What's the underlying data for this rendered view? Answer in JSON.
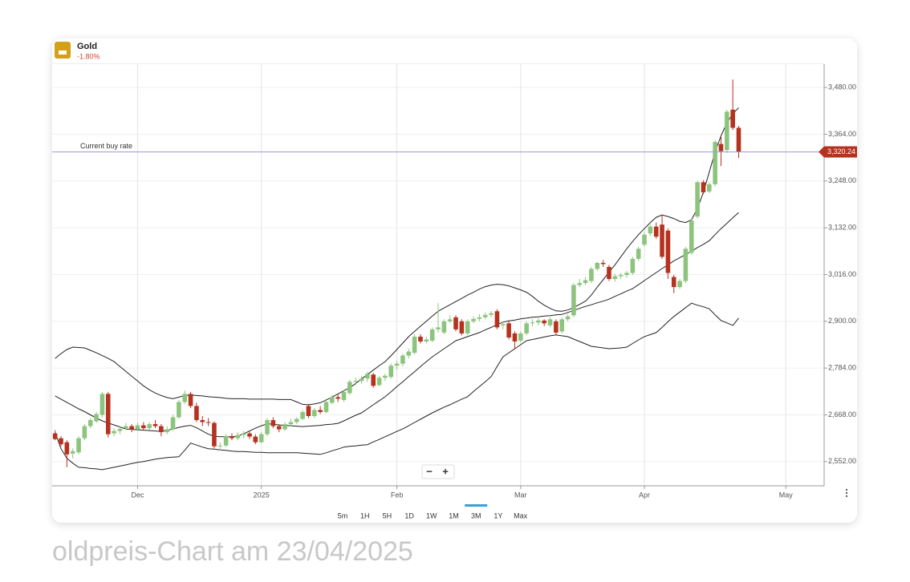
{
  "header": {
    "title": "Gold",
    "change": "-1.80%"
  },
  "chart_data": {
    "type": "candlestick",
    "categories": [
      null,
      null,
      null,
      null,
      null,
      null,
      null,
      null,
      null,
      null,
      null,
      null,
      null,
      null,
      "Dec",
      null,
      null,
      null,
      null,
      null,
      null,
      null,
      null,
      null,
      null,
      null,
      null,
      null,
      null,
      null,
      null,
      null,
      null,
      null,
      null,
      "2025",
      null,
      null,
      null,
      null,
      null,
      null,
      null,
      null,
      null,
      null,
      null,
      null,
      null,
      null,
      null,
      null,
      null,
      null,
      null,
      null,
      null,
      null,
      "Feb",
      null,
      null,
      null,
      null,
      null,
      null,
      null,
      null,
      null,
      null,
      null,
      null,
      null,
      null,
      null,
      null,
      null,
      null,
      null,
      null,
      "Mar",
      null,
      null,
      null,
      null,
      null,
      null,
      null,
      null,
      null,
      null,
      null,
      null,
      null,
      null,
      null,
      null,
      null,
      null,
      null,
      null,
      "Apr",
      null,
      null,
      null,
      null,
      null,
      null,
      null,
      null,
      null,
      null,
      null,
      null,
      null,
      null,
      null,
      null,
      null,
      null,
      null,
      null,
      null,
      null,
      null,
      "May",
      null,
      null,
      null,
      null,
      null,
      null
    ],
    "open": [
      2622,
      2610,
      2600,
      2572,
      2575,
      2610,
      2640,
      2652,
      2668,
      2720,
      2622,
      2628,
      2635,
      2640,
      2632,
      2642,
      2635,
      2645,
      2640,
      2625,
      2632,
      2662,
      2700,
      2720,
      2690,
      2655,
      2650,
      2648,
      2590,
      2592,
      2615,
      2610,
      2618,
      2622,
      2614,
      2600,
      2620,
      2655,
      2640,
      2632,
      2645,
      2650,
      2658,
      2690,
      2665,
      2680,
      2675,
      2698,
      2712,
      2705,
      2722,
      2750,
      2752,
      2758,
      2768,
      2742,
      2760,
      2762,
      2790,
      2795,
      2815,
      2822,
      2862,
      2850,
      2852,
      2880,
      2872,
      2900,
      2910,
      2900,
      2870,
      2900,
      2906,
      2910,
      2916,
      2925,
      2890,
      2895,
      2870,
      2852,
      2870,
      2895,
      2897,
      2902,
      2890,
      2900,
      2875,
      2905,
      2915,
      2990,
      2995,
      3000,
      3030,
      3045,
      3035,
      3005,
      3012,
      3015,
      3020,
      3055,
      3090,
      3118,
      3135,
      3140,
      3125,
      3010,
      2985,
      3000,
      3070,
      3160,
      3245,
      3222,
      3240,
      3340,
      3325,
      3425,
      3380,
      null,
      null,
      null,
      null,
      null,
      null,
      null,
      null,
      null,
      null,
      null,
      null,
      null,
      null
    ],
    "high": [
      2630,
      2615,
      2605,
      2585,
      2615,
      2645,
      2660,
      2675,
      2725,
      2725,
      2635,
      2640,
      2648,
      2645,
      2648,
      2650,
      2650,
      2655,
      2645,
      2640,
      2668,
      2705,
      2728,
      2725,
      2698,
      2665,
      2660,
      2652,
      2600,
      2620,
      2622,
      2625,
      2628,
      2628,
      2620,
      2625,
      2660,
      2662,
      2645,
      2650,
      2658,
      2662,
      2680,
      2695,
      2685,
      2690,
      2705,
      2718,
      2720,
      2730,
      2755,
      2760,
      2765,
      2775,
      2772,
      2765,
      2770,
      2795,
      2802,
      2820,
      2832,
      2868,
      2868,
      2862,
      2885,
      2945,
      2905,
      2915,
      2915,
      2905,
      2905,
      2912,
      2918,
      2922,
      2925,
      2930,
      2900,
      2900,
      2875,
      2875,
      2900,
      2905,
      2908,
      2905,
      2910,
      2905,
      2910,
      2918,
      2995,
      3005,
      3010,
      3035,
      3048,
      3052,
      3040,
      3018,
      3020,
      3025,
      3060,
      3085,
      3122,
      3140,
      3145,
      3165,
      3130,
      3015,
      3005,
      3085,
      3155,
      3248,
      3250,
      3245,
      3350,
      3360,
      3425,
      3500,
      3385,
      null,
      null,
      null,
      null,
      null,
      null,
      null,
      null,
      null,
      null,
      null,
      null,
      null,
      null
    ],
    "low": [
      2605,
      2590,
      2538,
      2560,
      2570,
      2605,
      2635,
      2648,
      2662,
      2612,
      2615,
      2620,
      2630,
      2625,
      2628,
      2630,
      2630,
      2635,
      2615,
      2620,
      2628,
      2658,
      2695,
      2685,
      2650,
      2640,
      2640,
      2585,
      2580,
      2588,
      2605,
      2605,
      2610,
      2608,
      2595,
      2598,
      2615,
      2635,
      2625,
      2628,
      2640,
      2645,
      2655,
      2660,
      2660,
      2670,
      2672,
      2694,
      2700,
      2700,
      2718,
      2742,
      2745,
      2750,
      2735,
      2738,
      2752,
      2758,
      2780,
      2788,
      2808,
      2818,
      2845,
      2845,
      2848,
      2872,
      2868,
      2895,
      2875,
      2865,
      2865,
      2895,
      2900,
      2905,
      2910,
      2880,
      2880,
      2855,
      2830,
      2848,
      2865,
      2888,
      2890,
      2888,
      2885,
      2865,
      2870,
      2900,
      2910,
      2985,
      2990,
      2995,
      3025,
      3035,
      3000,
      2998,
      3005,
      3008,
      3015,
      3050,
      3085,
      3112,
      3105,
      3055,
      3005,
      2970,
      2980,
      2995,
      3065,
      3155,
      3215,
      3218,
      3235,
      3285,
      3318,
      3375,
      3305,
      null,
      null,
      null,
      null,
      null,
      null,
      null,
      null,
      null,
      null,
      null,
      null,
      null,
      null
    ],
    "close": [
      2608,
      2595,
      2570,
      2578,
      2610,
      2640,
      2655,
      2670,
      2720,
      2620,
      2628,
      2633,
      2640,
      2632,
      2642,
      2635,
      2645,
      2640,
      2625,
      2632,
      2662,
      2700,
      2720,
      2690,
      2655,
      2650,
      2648,
      2590,
      2592,
      2615,
      2610,
      2618,
      2622,
      2614,
      2600,
      2620,
      2655,
      2640,
      2632,
      2645,
      2650,
      2658,
      2675,
      2665,
      2680,
      2675,
      2700,
      2712,
      2708,
      2725,
      2750,
      2752,
      2758,
      2770,
      2740,
      2760,
      2765,
      2790,
      2795,
      2815,
      2825,
      2862,
      2850,
      2855,
      2880,
      2885,
      2900,
      2905,
      2880,
      2870,
      2900,
      2906,
      2910,
      2916,
      2920,
      2885,
      2893,
      2860,
      2850,
      2870,
      2895,
      2897,
      2902,
      2895,
      2905,
      2872,
      2905,
      2912,
      2990,
      2995,
      3002,
      3030,
      3045,
      3042,
      3005,
      3012,
      3015,
      3020,
      3055,
      3080,
      3115,
      3135,
      3110,
      3060,
      3020,
      2985,
      3000,
      3080,
      3150,
      3245,
      3220,
      3240,
      3345,
      3322,
      3420,
      3380,
      3320,
      null,
      null,
      null,
      null,
      null,
      null,
      null,
      null,
      null,
      null,
      null,
      null,
      null,
      null
    ],
    "up_color": "#8cc47e",
    "down_color": "#b5321f",
    "lines": [
      {
        "color": "#222222",
        "values": [
          2808,
          2820,
          2830,
          2836,
          2835,
          2834,
          2828,
          2822,
          2815,
          2808,
          2800,
          2788,
          2776,
          2764,
          2752,
          2740,
          2730,
          2722,
          2716,
          2711,
          2708,
          2712,
          2716,
          2717,
          2716,
          2715,
          2713,
          2712,
          2711,
          2709,
          2708,
          2708,
          2708,
          2707,
          2707,
          2707,
          2707,
          2707,
          2706,
          2706,
          2706,
          2700,
          2694,
          2693,
          2695,
          2698,
          2705,
          2712,
          2720,
          2728,
          2735,
          2746,
          2757,
          2768,
          2779,
          2790,
          2800,
          2815,
          2830,
          2846,
          2862,
          2875,
          2888,
          2900,
          2913,
          2925,
          2933,
          2941,
          2949,
          2957,
          2965,
          2972,
          2980,
          2986,
          2990,
          2992,
          2991,
          2988,
          2983,
          2978,
          2972,
          2962,
          2950,
          2940,
          2932,
          2926,
          2925,
          2928,
          2934,
          2942,
          2950,
          2965,
          2985,
          3003,
          3022,
          3040,
          3060,
          3080,
          3098,
          3115,
          3130,
          3145,
          3158,
          3164,
          3160,
          3155,
          3148,
          3145,
          3152,
          3180,
          3220,
          3270,
          3320,
          3360,
          3392,
          3415,
          3430,
          null,
          null,
          null,
          null,
          null,
          null,
          null,
          null,
          null,
          null,
          null,
          null,
          null,
          null
        ]
      },
      {
        "color": "#222222",
        "values": [
          2715,
          2707,
          2699,
          2691,
          2683,
          2676,
          2668,
          2660,
          2653,
          2648,
          2643,
          2638,
          2633,
          2632,
          2631,
          2630,
          2629,
          2628,
          2627,
          2630,
          2633,
          2637,
          2640,
          2642,
          2636,
          2628,
          2620,
          2615,
          2614,
          2614,
          2614,
          2615,
          2621,
          2628,
          2635,
          2641,
          2646,
          2645,
          2643,
          2642,
          2641,
          2640,
          2639,
          2640,
          2641,
          2642,
          2644,
          2645,
          2647,
          2653,
          2660,
          2667,
          2673,
          2683,
          2693,
          2703,
          2713,
          2725,
          2738,
          2750,
          2763,
          2775,
          2788,
          2800,
          2812,
          2822,
          2832,
          2842,
          2852,
          2857,
          2862,
          2867,
          2872,
          2879,
          2885,
          2892,
          2898,
          2901,
          2903,
          2906,
          2908,
          2910,
          2911,
          2913,
          2914,
          2916,
          2917,
          2922,
          2927,
          2932,
          2937,
          2941,
          2946,
          2950,
          2955,
          2962,
          2968,
          2975,
          2981,
          2991,
          3001,
          3011,
          3021,
          3031,
          3040,
          3050,
          3058,
          3066,
          3074,
          3083,
          3091,
          3100,
          3115,
          3130,
          3143,
          3157,
          3170,
          null,
          null,
          null,
          null,
          null,
          null,
          null,
          null,
          null,
          null,
          null,
          null,
          null,
          null
        ]
      },
      {
        "color": "#222222",
        "values": [
          2624,
          2584,
          2560,
          2548,
          2538,
          2537,
          2535,
          2534,
          2532,
          2535,
          2538,
          2541,
          2544,
          2547,
          2550,
          2552,
          2555,
          2558,
          2560,
          2562,
          2563,
          2564,
          2580,
          2598,
          2593,
          2588,
          2584,
          2583,
          2581,
          2580,
          2578,
          2577,
          2577,
          2576,
          2575,
          2575,
          2574,
          2574,
          2574,
          2574,
          2574,
          2574,
          2573,
          2572,
          2571,
          2570,
          2574,
          2579,
          2583,
          2588,
          2590,
          2591,
          2593,
          2594,
          2601,
          2607,
          2614,
          2620,
          2627,
          2633,
          2641,
          2649,
          2657,
          2665,
          2673,
          2680,
          2687,
          2693,
          2700,
          2707,
          2713,
          2726,
          2738,
          2750,
          2763,
          2788,
          2812,
          2822,
          2832,
          2842,
          2852,
          2855,
          2858,
          2861,
          2864,
          2866,
          2864,
          2862,
          2856,
          2850,
          2844,
          2838,
          2836,
          2834,
          2832,
          2833,
          2834,
          2836,
          2845,
          2854,
          2862,
          2867,
          2872,
          2885,
          2899,
          2912,
          2923,
          2934,
          2945,
          2940,
          2936,
          2931,
          2916,
          2902,
          2896,
          2890,
          2908,
          null,
          null,
          null,
          null,
          null,
          null,
          null,
          null,
          null,
          null,
          null,
          null,
          null,
          null
        ]
      }
    ],
    "ylim": [
      2492,
      3538
    ],
    "yticks": [
      {
        "value": 2552,
        "label": "2,552.00"
      },
      {
        "value": 2668,
        "label": "2,668.00"
      },
      {
        "value": 2784,
        "label": "2,784.00"
      },
      {
        "value": 2900,
        "label": "2,900.00"
      },
      {
        "value": 3016,
        "label": "3,016.00"
      },
      {
        "value": 3132,
        "label": "3,132.00"
      },
      {
        "value": 3248,
        "label": "3,248.00"
      },
      {
        "value": 3364,
        "label": "3,364.00"
      },
      {
        "value": 3480,
        "label": "3,480.00"
      }
    ],
    "grid": true,
    "buy_rate": {
      "label": "Current buy rate",
      "value": 3320.24,
      "value_label": "3,320.24",
      "color": "#9a9ad8",
      "badge_color": "#b5321f"
    }
  },
  "zoom_controls": [
    "−",
    "+"
  ],
  "periods": [
    "5m",
    "1H",
    "5H",
    "1D",
    "1W",
    "1M",
    "3M",
    "1Y",
    "Max"
  ],
  "active_period_index": 6,
  "caption": "oldpreis-Chart am 23/04/2025"
}
